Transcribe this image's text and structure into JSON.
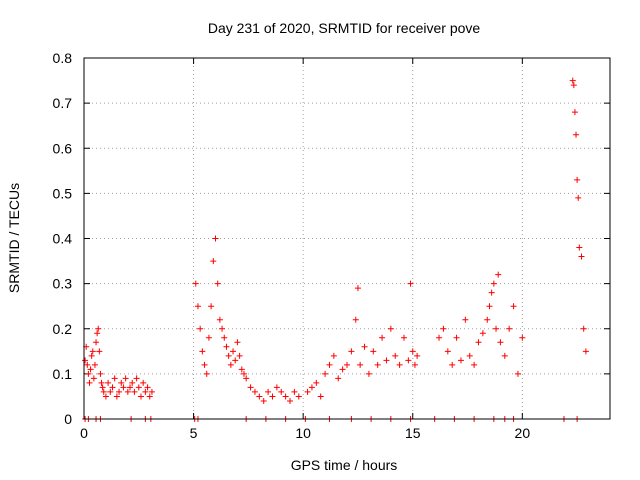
{
  "chart_data": {
    "type": "scatter",
    "title": "Day 231 of 2020, SRMTID for receiver pove",
    "xlabel": "GPS time / hours",
    "ylabel": "SRMTID / TECUs",
    "xlim": [
      0,
      24
    ],
    "ylim": [
      0,
      0.8
    ],
    "xticks": [
      0,
      5,
      10,
      15,
      20
    ],
    "yticks": [
      0,
      0.1,
      0.2,
      0.3,
      0.4,
      0.5,
      0.6,
      0.7,
      0.8
    ],
    "xtick_labels": [
      "0",
      "5",
      "10",
      "15",
      "20"
    ],
    "ytick_labels": [
      "0",
      "0.1",
      "0.2",
      "0.3",
      "0.4",
      "0.5",
      "0.6",
      "0.7",
      "0.8"
    ],
    "grid": true,
    "marker": "+",
    "color": "#ff0000",
    "series": [
      {
        "name": "SRMTID",
        "x": [
          0.05,
          0.1,
          0.15,
          0.2,
          0.25,
          0.3,
          0.35,
          0.4,
          0.45,
          0.5,
          0.55,
          0.6,
          0.65,
          0.7,
          0.75,
          0.8,
          0.85,
          0.9,
          1.0,
          1.1,
          1.2,
          1.3,
          1.4,
          1.5,
          1.6,
          1.7,
          1.8,
          1.9,
          2.0,
          2.1,
          2.2,
          2.3,
          2.4,
          2.5,
          2.6,
          2.7,
          2.8,
          2.9,
          3.0,
          3.1,
          5.1,
          5.2,
          5.3,
          5.4,
          5.5,
          5.6,
          5.7,
          5.8,
          5.9,
          6.0,
          6.1,
          6.2,
          6.3,
          6.4,
          6.5,
          6.6,
          6.7,
          6.8,
          6.9,
          7.0,
          7.1,
          7.2,
          7.3,
          7.4,
          7.6,
          7.8,
          8.0,
          8.2,
          8.4,
          8.6,
          8.8,
          9.0,
          9.2,
          9.4,
          9.6,
          9.8,
          10.2,
          10.4,
          10.6,
          10.8,
          11.0,
          11.2,
          11.4,
          11.6,
          11.8,
          12.0,
          12.2,
          12.4,
          12.5,
          12.6,
          12.8,
          13.0,
          13.2,
          13.4,
          13.6,
          13.8,
          14.0,
          14.2,
          14.4,
          14.6,
          14.8,
          14.9,
          15.0,
          15.1,
          15.2,
          16.2,
          16.4,
          16.6,
          16.8,
          17.0,
          17.2,
          17.4,
          17.6,
          17.8,
          18.0,
          18.2,
          18.4,
          18.5,
          18.6,
          18.7,
          18.8,
          18.9,
          19.0,
          19.2,
          19.4,
          19.6,
          19.8,
          20.0,
          22.3,
          22.35,
          22.4,
          22.45,
          22.5,
          22.55,
          22.6,
          22.7,
          22.8,
          22.9
        ],
        "y": [
          0.13,
          0.16,
          0.12,
          0.1,
          0.08,
          0.11,
          0.14,
          0.15,
          0.09,
          0.12,
          0.17,
          0.19,
          0.2,
          0.15,
          0.1,
          0.08,
          0.07,
          0.06,
          0.05,
          0.08,
          0.06,
          0.07,
          0.09,
          0.05,
          0.06,
          0.08,
          0.07,
          0.09,
          0.06,
          0.07,
          0.08,
          0.06,
          0.09,
          0.07,
          0.05,
          0.08,
          0.06,
          0.07,
          0.05,
          0.06,
          0.3,
          0.25,
          0.2,
          0.15,
          0.12,
          0.1,
          0.18,
          0.25,
          0.35,
          0.4,
          0.3,
          0.22,
          0.2,
          0.18,
          0.16,
          0.14,
          0.12,
          0.15,
          0.13,
          0.17,
          0.14,
          0.11,
          0.1,
          0.09,
          0.07,
          0.06,
          0.05,
          0.04,
          0.06,
          0.05,
          0.07,
          0.06,
          0.05,
          0.04,
          0.06,
          0.05,
          0.06,
          0.07,
          0.08,
          0.05,
          0.1,
          0.12,
          0.14,
          0.09,
          0.11,
          0.12,
          0.15,
          0.22,
          0.29,
          0.12,
          0.16,
          0.1,
          0.15,
          0.12,
          0.18,
          0.13,
          0.2,
          0.14,
          0.12,
          0.18,
          0.13,
          0.3,
          0.15,
          0.12,
          0.14,
          0.18,
          0.2,
          0.15,
          0.12,
          0.18,
          0.13,
          0.22,
          0.14,
          0.12,
          0.17,
          0.19,
          0.22,
          0.25,
          0.28,
          0.3,
          0.2,
          0.32,
          0.17,
          0.14,
          0.2,
          0.25,
          0.1,
          0.18,
          0.75,
          0.74,
          0.68,
          0.63,
          0.53,
          0.49,
          0.38,
          0.36,
          0.2,
          0.15
        ],
        "zero_x": [
          0.05,
          0.2,
          0.55,
          0.75,
          2.15,
          2.8,
          3.05,
          5.05,
          5.2,
          7.4,
          8.3,
          9.2,
          10.1,
          11.2,
          12.2,
          13.1,
          14.0,
          14.9,
          16.0,
          16.9,
          17.8,
          18.7,
          19.2,
          19.6,
          21.9,
          22.5
        ]
      }
    ]
  }
}
